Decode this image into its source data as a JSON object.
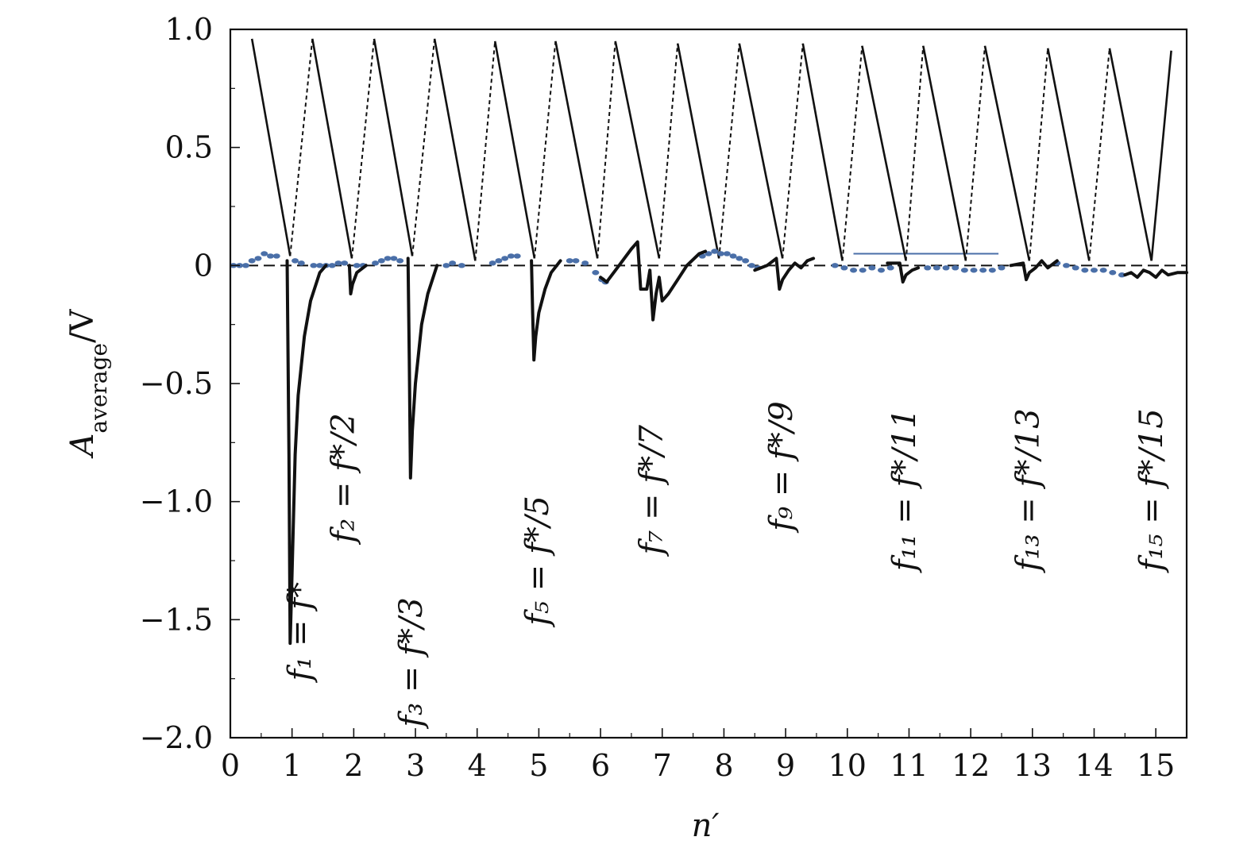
{
  "chart_data": {
    "type": "line",
    "xlabel": "n′",
    "ylabel": "A_average/V",
    "ylabel_main": "A",
    "ylabel_sub": "average",
    "ylabel_unit": "/V",
    "xlim": [
      0,
      15.5
    ],
    "ylim": [
      -2.0,
      1.0
    ],
    "xticks": [
      "0",
      "1",
      "2",
      "3",
      "4",
      "5",
      "6",
      "7",
      "8",
      "9",
      "10",
      "11",
      "12",
      "13",
      "14",
      "15"
    ],
    "yticks": [
      {
        "value": 1.0,
        "label": "1.0"
      },
      {
        "value": 0.5,
        "label": "0.5"
      },
      {
        "value": 0,
        "label": "0"
      },
      {
        "value": -0.5,
        "label": "−0.5"
      },
      {
        "value": -1.0,
        "label": "−1.0"
      },
      {
        "value": -1.5,
        "label": "−1.5"
      },
      {
        "value": -2.0,
        "label": "−2.0"
      }
    ],
    "grid": false,
    "colors": {
      "response": "#111111",
      "points": "#4a6fa8",
      "zero_line": "#111111"
    },
    "zigzag_solid": {
      "segments": [
        [
          [
            0.35,
            0.96
          ],
          [
            0.97,
            0.04
          ]
        ],
        [
          [
            1.33,
            0.96
          ],
          [
            1.97,
            0.03
          ]
        ],
        [
          [
            2.33,
            0.96
          ],
          [
            2.95,
            0.04
          ]
        ],
        [
          [
            3.31,
            0.96
          ],
          [
            3.97,
            0.02
          ]
        ],
        [
          [
            4.29,
            0.95
          ],
          [
            4.93,
            0.03
          ]
        ],
        [
          [
            5.27,
            0.95
          ],
          [
            5.95,
            0.03
          ]
        ],
        [
          [
            6.24,
            0.95
          ],
          [
            6.95,
            0.03
          ]
        ],
        [
          [
            7.25,
            0.94
          ],
          [
            7.92,
            0.03
          ]
        ],
        [
          [
            8.25,
            0.94
          ],
          [
            8.95,
            0.03
          ]
        ],
        [
          [
            9.28,
            0.94
          ],
          [
            9.92,
            0.02
          ]
        ],
        [
          [
            10.24,
            0.93
          ],
          [
            10.95,
            0.02
          ]
        ],
        [
          [
            11.23,
            0.93
          ],
          [
            11.92,
            0.02
          ]
        ],
        [
          [
            12.23,
            0.93
          ],
          [
            12.95,
            0.02
          ]
        ],
        [
          [
            13.25,
            0.92
          ],
          [
            13.92,
            0.02
          ]
        ],
        [
          [
            14.25,
            0.92
          ],
          [
            14.93,
            0.02
          ]
        ]
      ],
      "last_rise": [
        [
          14.93,
          0.02
        ],
        [
          15.25,
          0.91
        ]
      ]
    },
    "zigzag_dashed": {
      "segments": [
        [
          [
            0.97,
            0.04
          ],
          [
            1.33,
            0.96
          ]
        ],
        [
          [
            1.97,
            0.03
          ],
          [
            2.33,
            0.96
          ]
        ],
        [
          [
            2.95,
            0.04
          ],
          [
            3.31,
            0.96
          ]
        ],
        [
          [
            3.97,
            0.02
          ],
          [
            4.29,
            0.95
          ]
        ],
        [
          [
            4.93,
            0.03
          ],
          [
            5.27,
            0.95
          ]
        ],
        [
          [
            5.95,
            0.03
          ],
          [
            6.24,
            0.95
          ]
        ],
        [
          [
            6.95,
            0.03
          ],
          [
            7.25,
            0.94
          ]
        ],
        [
          [
            7.92,
            0.03
          ],
          [
            8.25,
            0.94
          ]
        ],
        [
          [
            8.95,
            0.03
          ],
          [
            9.28,
            0.94
          ]
        ],
        [
          [
            9.92,
            0.02
          ],
          [
            10.24,
            0.93
          ]
        ],
        [
          [
            10.95,
            0.02
          ],
          [
            11.23,
            0.93
          ]
        ],
        [
          [
            11.92,
            0.02
          ],
          [
            12.23,
            0.93
          ]
        ],
        [
          [
            12.95,
            0.02
          ],
          [
            13.25,
            0.92
          ]
        ],
        [
          [
            13.92,
            0.02
          ],
          [
            14.25,
            0.92
          ]
        ]
      ]
    },
    "response_curves": [
      [
        [
          0.92,
          0.02
        ],
        [
          0.95,
          -0.8
        ],
        [
          0.97,
          -1.6
        ],
        [
          1.0,
          -1.3
        ],
        [
          1.05,
          -0.8
        ],
        [
          1.1,
          -0.55
        ],
        [
          1.2,
          -0.3
        ],
        [
          1.3,
          -0.15
        ],
        [
          1.45,
          -0.03
        ],
        [
          1.55,
          0.0
        ]
      ],
      [
        [
          1.93,
          0.0
        ],
        [
          1.95,
          -0.12
        ],
        [
          1.98,
          -0.08
        ],
        [
          2.05,
          -0.03
        ],
        [
          2.2,
          0.0
        ]
      ],
      [
        [
          2.88,
          0.03
        ],
        [
          2.9,
          -0.4
        ],
        [
          2.92,
          -0.9
        ],
        [
          2.95,
          -0.7
        ],
        [
          3.0,
          -0.5
        ],
        [
          3.1,
          -0.25
        ],
        [
          3.2,
          -0.12
        ],
        [
          3.35,
          0.0
        ]
      ],
      [
        [
          4.88,
          0.02
        ],
        [
          4.9,
          -0.2
        ],
        [
          4.92,
          -0.4
        ],
        [
          4.95,
          -0.3
        ],
        [
          5.0,
          -0.2
        ],
        [
          5.1,
          -0.1
        ],
        [
          5.2,
          -0.03
        ],
        [
          5.35,
          0.02
        ]
      ],
      [
        [
          6.0,
          -0.05
        ],
        [
          6.1,
          -0.07
        ],
        [
          6.3,
          0.0
        ],
        [
          6.5,
          0.07
        ],
        [
          6.6,
          0.1
        ],
        [
          6.65,
          -0.1
        ],
        [
          6.75,
          -0.1
        ],
        [
          6.8,
          -0.02
        ],
        [
          6.85,
          -0.23
        ],
        [
          6.9,
          -0.12
        ],
        [
          6.95,
          -0.05
        ],
        [
          7.0,
          -0.15
        ],
        [
          7.1,
          -0.12
        ],
        [
          7.25,
          -0.06
        ],
        [
          7.4,
          0.0
        ],
        [
          7.6,
          0.05
        ],
        [
          7.7,
          0.06
        ]
      ],
      [
        [
          8.5,
          -0.02
        ],
        [
          8.7,
          0.0
        ],
        [
          8.85,
          0.03
        ],
        [
          8.9,
          -0.1
        ],
        [
          8.95,
          -0.06
        ],
        [
          9.05,
          -0.02
        ],
        [
          9.15,
          0.01
        ],
        [
          9.25,
          -0.01
        ],
        [
          9.35,
          0.02
        ],
        [
          9.45,
          0.03
        ]
      ],
      [
        [
          10.65,
          0.01
        ],
        [
          10.85,
          0.01
        ],
        [
          10.9,
          -0.07
        ],
        [
          10.95,
          -0.04
        ],
        [
          11.05,
          -0.02
        ],
        [
          11.15,
          -0.01
        ]
      ],
      [
        [
          12.65,
          0.0
        ],
        [
          12.85,
          0.01
        ],
        [
          12.9,
          -0.06
        ],
        [
          12.95,
          -0.03
        ],
        [
          13.05,
          -0.01
        ],
        [
          13.15,
          0.02
        ],
        [
          13.25,
          -0.01
        ],
        [
          13.4,
          0.02
        ]
      ],
      [
        [
          14.5,
          -0.04
        ],
        [
          14.6,
          -0.03
        ],
        [
          14.7,
          -0.05
        ],
        [
          14.8,
          -0.02
        ],
        [
          14.9,
          -0.03
        ],
        [
          15.0,
          -0.05
        ],
        [
          15.1,
          -0.02
        ],
        [
          15.2,
          -0.04
        ],
        [
          15.35,
          -0.03
        ],
        [
          15.5,
          -0.03
        ]
      ]
    ],
    "points": [
      [
        0.05,
        0.0
      ],
      [
        0.15,
        0.0
      ],
      [
        0.25,
        0.0
      ],
      [
        0.35,
        0.02
      ],
      [
        0.45,
        0.03
      ],
      [
        0.55,
        0.05
      ],
      [
        0.65,
        0.04
      ],
      [
        0.75,
        0.04
      ],
      [
        1.05,
        0.02
      ],
      [
        1.15,
        0.01
      ],
      [
        1.35,
        0.0
      ],
      [
        1.45,
        0.0
      ],
      [
        1.55,
        0.0
      ],
      [
        1.65,
        0.0
      ],
      [
        1.75,
        0.01
      ],
      [
        1.85,
        0.01
      ],
      [
        2.05,
        0.0
      ],
      [
        2.15,
        0.0
      ],
      [
        2.35,
        0.01
      ],
      [
        2.45,
        0.02
      ],
      [
        2.55,
        0.03
      ],
      [
        2.65,
        0.03
      ],
      [
        2.75,
        0.02
      ],
      [
        3.5,
        0.0
      ],
      [
        3.6,
        0.01
      ],
      [
        3.75,
        0.0
      ],
      [
        4.25,
        0.01
      ],
      [
        4.35,
        0.02
      ],
      [
        4.45,
        0.03
      ],
      [
        4.55,
        0.04
      ],
      [
        4.65,
        0.04
      ],
      [
        5.5,
        0.02
      ],
      [
        5.6,
        0.02
      ],
      [
        5.75,
        0.01
      ],
      [
        5.92,
        -0.03
      ],
      [
        6.02,
        -0.06
      ],
      [
        6.08,
        -0.07
      ],
      [
        7.65,
        0.04
      ],
      [
        7.75,
        0.05
      ],
      [
        7.85,
        0.06
      ],
      [
        7.95,
        0.05
      ],
      [
        8.05,
        0.05
      ],
      [
        8.15,
        0.04
      ],
      [
        8.25,
        0.03
      ],
      [
        8.35,
        0.02
      ],
      [
        8.45,
        0.0
      ],
      [
        8.55,
        -0.01
      ],
      [
        9.8,
        0.0
      ],
      [
        9.95,
        -0.01
      ],
      [
        10.1,
        -0.02
      ],
      [
        10.25,
        -0.02
      ],
      [
        10.4,
        -0.01
      ],
      [
        10.55,
        -0.02
      ],
      [
        10.7,
        -0.01
      ],
      [
        11.3,
        -0.01
      ],
      [
        11.45,
        -0.01
      ],
      [
        11.6,
        -0.01
      ],
      [
        11.75,
        -0.01
      ],
      [
        11.9,
        -0.02
      ],
      [
        12.05,
        -0.02
      ],
      [
        12.2,
        -0.02
      ],
      [
        12.35,
        -0.02
      ],
      [
        12.5,
        -0.01
      ],
      [
        13.4,
        0.01
      ],
      [
        13.55,
        0.0
      ],
      [
        13.7,
        -0.01
      ],
      [
        13.85,
        -0.02
      ],
      [
        14.0,
        -0.02
      ],
      [
        14.15,
        -0.02
      ],
      [
        14.3,
        -0.03
      ],
      [
        14.45,
        -0.04
      ]
    ],
    "blue_hline": [
      [
        10.1,
        0.05
      ],
      [
        12.45,
        0.05
      ]
    ],
    "zero_dashed_line": 0,
    "annotations": [
      {
        "label": "f₁ = f*",
        "x": 1.3,
        "y": -1.55
      },
      {
        "label": "f₂ = f*/2",
        "x": 2.0,
        "y": -0.9
      },
      {
        "label": "f₃ = f*/3",
        "x": 3.1,
        "y": -1.68
      },
      {
        "label": "f₅ = f*/5",
        "x": 5.15,
        "y": -1.25
      },
      {
        "label": "f₇ = f*/7",
        "x": 7.0,
        "y": -0.95
      },
      {
        "label": "f₉ = f*/9",
        "x": 9.1,
        "y": -0.85
      },
      {
        "label": "f₁₁ = f*/11",
        "x": 11.1,
        "y": -0.95
      },
      {
        "label": "f₁₃ = f*/13",
        "x": 13.1,
        "y": -0.95
      },
      {
        "label": "f₁₅ = f*/15",
        "x": 15.1,
        "y": -0.95
      }
    ]
  }
}
